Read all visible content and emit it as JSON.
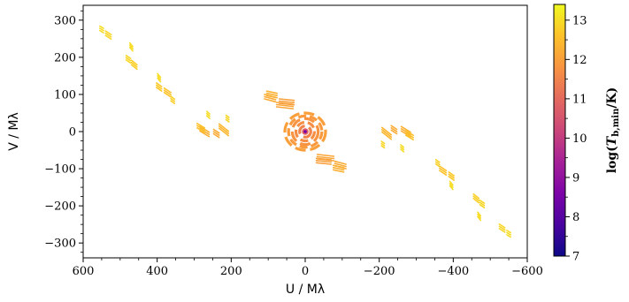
{
  "chart_data": {
    "type": "scatter",
    "title": "",
    "xlabel": "U / Mλ",
    "ylabel": "V / Mλ",
    "xlim": [
      600,
      -600
    ],
    "ylim": [
      -340,
      340
    ],
    "x_ticks": [
      600,
      400,
      200,
      0,
      -200,
      -400,
      -600
    ],
    "x_tick_labels": [
      "600",
      "400",
      "200",
      "0",
      "−200",
      "−400",
      "−600"
    ],
    "y_ticks": [
      300,
      200,
      100,
      0,
      -100,
      -200,
      -300
    ],
    "y_tick_labels": [
      "300",
      "200",
      "100",
      "0",
      "−100",
      "−200",
      "−300"
    ],
    "grid": false,
    "colorbar": {
      "label": "log(T_b,min / K)",
      "label_parts": {
        "prefix": "log(",
        "var": "T",
        "sub": "b,min",
        "suffix": "/K)"
      },
      "range": [
        7,
        13.4
      ],
      "ticks": [
        7,
        8,
        9,
        10,
        11,
        12,
        13
      ],
      "tick_labels": [
        "7",
        "8",
        "9",
        "10",
        "11",
        "12",
        "13"
      ],
      "colormap": "plasma"
    },
    "tracks": [
      {
        "x": 532,
        "y": 260,
        "dx": 15,
        "dy": 10,
        "c": 12.9
      },
      {
        "x": 550,
        "y": 275,
        "dx": 10,
        "dy": 6,
        "c": 13.0
      },
      {
        "x": 462,
        "y": 180,
        "dx": 15,
        "dy": 12,
        "c": 12.8
      },
      {
        "x": 478,
        "y": 195,
        "dx": 12,
        "dy": 8,
        "c": 12.9
      },
      {
        "x": 470,
        "y": 228,
        "dx": 8,
        "dy": 10,
        "c": 13.0
      },
      {
        "x": 372,
        "y": 105,
        "dx": 18,
        "dy": 12,
        "c": 12.6
      },
      {
        "x": 395,
        "y": 120,
        "dx": 14,
        "dy": 10,
        "c": 12.7
      },
      {
        "x": 395,
        "y": 145,
        "dx": 8,
        "dy": 10,
        "c": 13.0
      },
      {
        "x": 358,
        "y": 85,
        "dx": 10,
        "dy": 7,
        "c": 12.8
      },
      {
        "x": 272,
        "y": 0,
        "dx": 25,
        "dy": 15,
        "c": 12.3
      },
      {
        "x": 282,
        "y": 10,
        "dx": 20,
        "dy": 12,
        "c": 12.6
      },
      {
        "x": 220,
        "y": 5,
        "dx": 25,
        "dy": 20,
        "c": 12.4
      },
      {
        "x": 240,
        "y": -5,
        "dx": 15,
        "dy": 10,
        "c": 12.2
      },
      {
        "x": 262,
        "y": 45,
        "dx": 8,
        "dy": 7,
        "c": 13.0
      },
      {
        "x": 210,
        "y": 35,
        "dx": 8,
        "dy": 6,
        "c": 12.9
      },
      {
        "x": -532,
        "y": -260,
        "dx": 15,
        "dy": 10,
        "c": 12.9
      },
      {
        "x": -550,
        "y": -275,
        "dx": 10,
        "dy": 6,
        "c": 13.0
      },
      {
        "x": -462,
        "y": -180,
        "dx": 15,
        "dy": 12,
        "c": 12.8
      },
      {
        "x": -478,
        "y": -195,
        "dx": 12,
        "dy": 8,
        "c": 12.9
      },
      {
        "x": -470,
        "y": -228,
        "dx": 8,
        "dy": 10,
        "c": 13.0
      },
      {
        "x": -372,
        "y": -105,
        "dx": 18,
        "dy": 12,
        "c": 12.6
      },
      {
        "x": -395,
        "y": -120,
        "dx": 14,
        "dy": 10,
        "c": 12.7
      },
      {
        "x": -395,
        "y": -145,
        "dx": 8,
        "dy": 10,
        "c": 13.0
      },
      {
        "x": -358,
        "y": -85,
        "dx": 10,
        "dy": 7,
        "c": 12.8
      },
      {
        "x": -272,
        "y": 0,
        "dx": 25,
        "dy": 15,
        "c": 12.3
      },
      {
        "x": -282,
        "y": -10,
        "dx": 20,
        "dy": 12,
        "c": 12.6
      },
      {
        "x": -220,
        "y": -5,
        "dx": 25,
        "dy": 20,
        "c": 12.4
      },
      {
        "x": -240,
        "y": 5,
        "dx": 15,
        "dy": 10,
        "c": 12.2
      },
      {
        "x": -262,
        "y": -45,
        "dx": 8,
        "dy": 7,
        "c": 13.0
      },
      {
        "x": -210,
        "y": -35,
        "dx": 8,
        "dy": 6,
        "c": 12.9
      },
      {
        "x": 55,
        "y": 70,
        "dx": 45,
        "dy": 5,
        "c": 12.1
      },
      {
        "x": 50,
        "y": 80,
        "dx": 40,
        "dy": 4,
        "c": 12.0
      },
      {
        "x": 95,
        "y": 90,
        "dx": 30,
        "dy": 8,
        "c": 12.2
      },
      {
        "x": 90,
        "y": 100,
        "dx": 28,
        "dy": 6,
        "c": 12.3
      },
      {
        "x": -55,
        "y": -70,
        "dx": 45,
        "dy": 5,
        "c": 12.1
      },
      {
        "x": -50,
        "y": -80,
        "dx": 40,
        "dy": 4,
        "c": 12.0
      },
      {
        "x": -95,
        "y": -90,
        "dx": 30,
        "dy": 8,
        "c": 12.2
      },
      {
        "x": -90,
        "y": -100,
        "dx": 28,
        "dy": 6,
        "c": 12.3
      }
    ],
    "center_rings": [
      {
        "radius_u": 15,
        "radius_v": 15,
        "c": 11.5
      },
      {
        "radius_u": 25,
        "radius_v": 25,
        "c": 11.7
      },
      {
        "radius_u": 35,
        "radius_v": 35,
        "c": 11.8
      },
      {
        "radius_u": 45,
        "radius_v": 42,
        "c": 11.9
      },
      {
        "radius_u": 55,
        "radius_v": 50,
        "c": 12.0
      }
    ],
    "center_core": [
      {
        "radius_u": 9,
        "radius_v": 9,
        "c": 10.8
      },
      {
        "radius_u": 5,
        "radius_v": 5,
        "c": 9.5
      },
      {
        "radius_u": 2,
        "radius_v": 2,
        "c": 8.5
      }
    ]
  }
}
